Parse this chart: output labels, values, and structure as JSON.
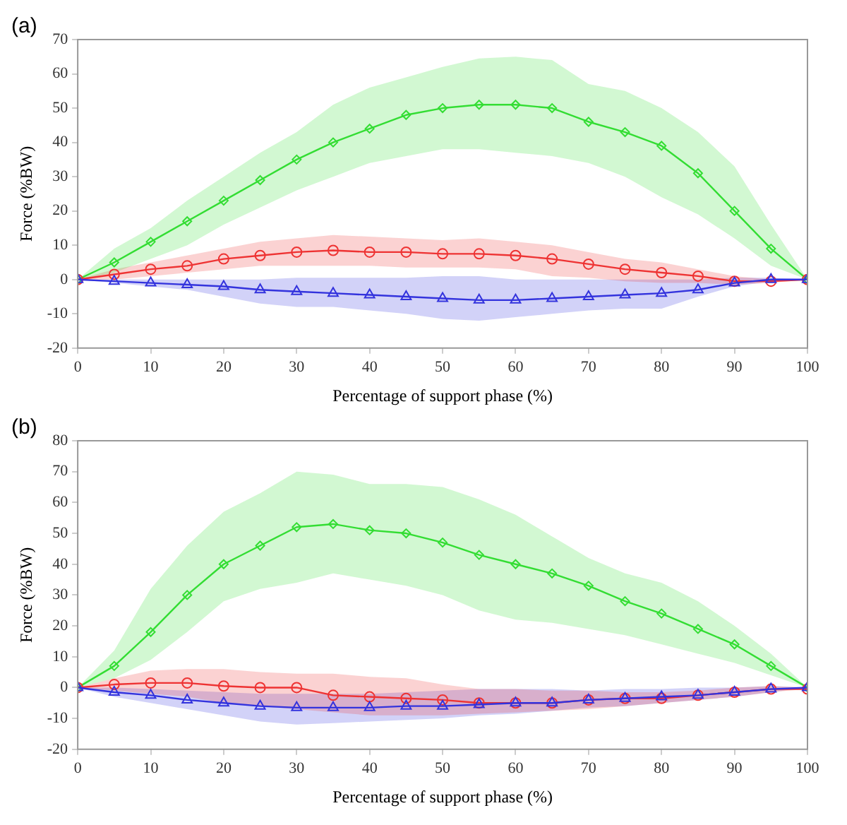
{
  "chart_data": [
    {
      "type": "line",
      "title": "(a)",
      "xlabel": "Percentage of support phase (%)",
      "ylabel": "Force (%BW)",
      "x": [
        0,
        5,
        10,
        15,
        20,
        25,
        30,
        35,
        40,
        45,
        50,
        55,
        60,
        65,
        70,
        75,
        80,
        85,
        90,
        95,
        100
      ],
      "xlim": [
        0,
        100
      ],
      "xticks": [
        0,
        10,
        20,
        30,
        40,
        50,
        60,
        70,
        80,
        90,
        100
      ],
      "ylim": [
        -20,
        70
      ],
      "yticks": [
        -20,
        -10,
        0,
        10,
        20,
        30,
        40,
        50,
        60,
        70
      ],
      "grid": false,
      "legend": false,
      "series": [
        {
          "color": "#33dd33",
          "marker": "diamond",
          "values": [
            0,
            5,
            11,
            17,
            23,
            29,
            35,
            40,
            44,
            48,
            50,
            51,
            51,
            50,
            46,
            43,
            39,
            31,
            20,
            9,
            0
          ],
          "upper": [
            0,
            9,
            15,
            23,
            30,
            37,
            43,
            51,
            56,
            59,
            62,
            64.5,
            65,
            64,
            57,
            55,
            50,
            43,
            33,
            16,
            0
          ],
          "lower": [
            0,
            2,
            6,
            10,
            16,
            21,
            26,
            30,
            34,
            36,
            38,
            38,
            37,
            36,
            34,
            30,
            24,
            19,
            12,
            4,
            0
          ]
        },
        {
          "color": "#ee3333",
          "marker": "circle",
          "values": [
            0,
            1.5,
            3,
            4,
            6,
            7,
            8,
            8.5,
            8,
            8,
            7.5,
            7.5,
            7,
            6,
            4.5,
            3,
            2,
            1,
            -0.5,
            -0.5,
            0
          ],
          "upper": [
            0,
            3,
            5,
            7,
            9,
            11,
            12,
            13,
            12.5,
            12,
            11.5,
            12,
            11,
            10,
            8,
            6,
            5,
            3,
            1,
            0,
            0
          ],
          "lower": [
            0,
            0,
            1,
            2,
            3,
            4,
            4,
            4,
            4,
            3.5,
            3.5,
            3.5,
            3,
            1,
            0.5,
            -0.5,
            -1,
            -1,
            -1.5,
            -1,
            0
          ]
        },
        {
          "color": "#3333dd",
          "marker": "triangle",
          "values": [
            0,
            -0.5,
            -1,
            -1.5,
            -2,
            -3,
            -3.5,
            -4,
            -4.5,
            -5,
            -5.5,
            -6,
            -6,
            -5.5,
            -5,
            -4.5,
            -4,
            -3,
            -1,
            0,
            0
          ],
          "upper": [
            0,
            0,
            0,
            0,
            0,
            0,
            0.5,
            0.5,
            0.5,
            0.5,
            1,
            1,
            0,
            0,
            0,
            0,
            0,
            0,
            0.5,
            0.5,
            0
          ],
          "lower": [
            0,
            -1,
            -2,
            -3,
            -5,
            -7,
            -8,
            -8,
            -9,
            -10,
            -11.5,
            -12,
            -11,
            -10,
            -9,
            -8.5,
            -8.5,
            -5,
            -2,
            -0.5,
            0
          ]
        }
      ]
    },
    {
      "type": "line",
      "title": "(b)",
      "xlabel": "Percentage of support phase (%)",
      "ylabel": "Force (%BW)",
      "x": [
        0,
        5,
        10,
        15,
        20,
        25,
        30,
        35,
        40,
        45,
        50,
        55,
        60,
        65,
        70,
        75,
        80,
        85,
        90,
        95,
        100
      ],
      "xlim": [
        0,
        100
      ],
      "xticks": [
        0,
        10,
        20,
        30,
        40,
        50,
        60,
        70,
        80,
        90,
        100
      ],
      "ylim": [
        -20,
        80
      ],
      "yticks": [
        -20,
        -10,
        0,
        10,
        20,
        30,
        40,
        50,
        60,
        70,
        80
      ],
      "grid": false,
      "legend": false,
      "series": [
        {
          "color": "#33dd33",
          "marker": "diamond",
          "values": [
            0,
            7,
            18,
            30,
            40,
            46,
            52,
            53,
            51,
            50,
            47,
            43,
            40,
            37,
            33,
            28,
            24,
            19,
            14,
            7,
            0
          ],
          "upper": [
            0,
            12,
            32,
            46,
            57,
            63,
            70,
            69,
            66,
            66,
            65,
            61,
            56,
            49,
            42,
            37,
            34,
            28,
            20,
            11,
            0
          ],
          "lower": [
            0,
            3,
            9,
            18,
            28,
            32,
            34,
            37,
            35,
            33,
            30,
            25,
            22,
            21,
            19,
            17,
            14,
            11,
            8,
            4,
            0
          ]
        },
        {
          "color": "#ee3333",
          "marker": "circle",
          "values": [
            0,
            1,
            1.5,
            1.5,
            0.5,
            0,
            0,
            -2.5,
            -3,
            -3.5,
            -4,
            -5,
            -5,
            -5,
            -4,
            -3.5,
            -3.5,
            -2.5,
            -1.5,
            -0.5,
            -0.5
          ],
          "upper": [
            0,
            3,
            5.5,
            6,
            6,
            5,
            4.5,
            4.5,
            3.5,
            3,
            1,
            -0.5,
            -0.5,
            -1,
            -1,
            -1.5,
            -1.5,
            -1,
            0,
            0.5,
            0
          ],
          "lower": [
            0,
            -1,
            -2,
            -3,
            -5,
            -6,
            -7,
            -8,
            -9,
            -9,
            -9,
            -8.5,
            -8,
            -7.5,
            -7,
            -6,
            -5,
            -4,
            -3,
            -1.5,
            -0.5
          ]
        },
        {
          "color": "#3333dd",
          "marker": "triangle",
          "values": [
            0,
            -1.5,
            -2.5,
            -4,
            -5,
            -6,
            -6.5,
            -6.5,
            -6.5,
            -6,
            -6,
            -5.5,
            -5,
            -5,
            -4,
            -3.5,
            -3,
            -2.5,
            -1.5,
            -0.5,
            0
          ],
          "upper": [
            0,
            0,
            -0.5,
            -1,
            -1.5,
            -2,
            -2,
            -2,
            -2,
            -1.5,
            -1,
            -0.5,
            -0.5,
            -0.5,
            -1,
            -0.5,
            -0.5,
            0,
            0,
            0.5,
            0
          ],
          "lower": [
            0,
            -3,
            -5,
            -7,
            -9,
            -11,
            -12,
            -11.5,
            -11,
            -10.5,
            -10,
            -9,
            -8.5,
            -7.5,
            -6.5,
            -6,
            -5,
            -4,
            -3,
            -1.5,
            0
          ]
        }
      ]
    }
  ]
}
